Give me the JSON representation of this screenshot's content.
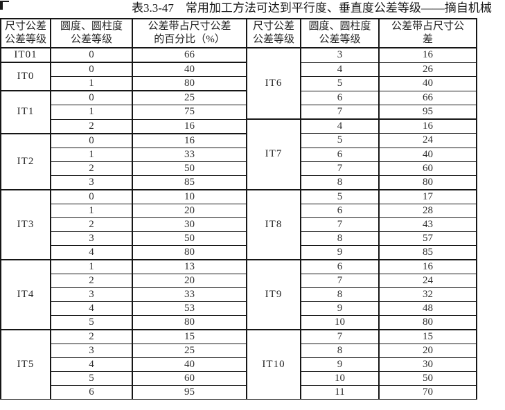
{
  "title": "表3.3-47　常用加工方法可达到平行度、垂直度公差等级——摘自机械",
  "table": {
    "headers": {
      "left": [
        {
          "line1": "尺寸公差",
          "line2": "公差等级"
        },
        {
          "line1": "圆度、圆柱度",
          "line2": "公差等级"
        },
        {
          "line1": "公差带占尺寸公差",
          "line2": "的百分比（%）"
        }
      ],
      "right": [
        {
          "line1": "尺寸公差",
          "line2": "公差等级"
        },
        {
          "line1": "圆度、圆柱度",
          "line2": "公差等级"
        },
        {
          "line1": "公差带占尺寸公",
          "line2": "差"
        }
      ]
    },
    "left_groups": [
      {
        "grade": "IT01",
        "rows": [
          [
            "0",
            "66"
          ]
        ]
      },
      {
        "grade": "IT0",
        "rows": [
          [
            "0",
            "40"
          ],
          [
            "1",
            "80"
          ]
        ]
      },
      {
        "grade": "IT1",
        "rows": [
          [
            "0",
            "25"
          ],
          [
            "1",
            "75"
          ],
          [
            "2",
            "16"
          ]
        ]
      },
      {
        "grade": "IT2",
        "rows": [
          [
            "0",
            "16"
          ],
          [
            "1",
            "33"
          ],
          [
            "2",
            "50"
          ],
          [
            "3",
            "85"
          ]
        ]
      },
      {
        "grade": "IT3",
        "rows": [
          [
            "0",
            "10"
          ],
          [
            "1",
            "20"
          ],
          [
            "2",
            "30"
          ],
          [
            "3",
            "50"
          ],
          [
            "4",
            "80"
          ]
        ]
      },
      {
        "grade": "IT4",
        "rows": [
          [
            "1",
            "13"
          ],
          [
            "2",
            "20"
          ],
          [
            "3",
            "33"
          ],
          [
            "4",
            "53"
          ],
          [
            "5",
            "80"
          ]
        ]
      },
      {
        "grade": "IT5",
        "rows": [
          [
            "2",
            "15"
          ],
          [
            "3",
            "25"
          ],
          [
            "4",
            "40"
          ],
          [
            "5",
            "60"
          ],
          [
            "6",
            "95"
          ]
        ]
      }
    ],
    "right_groups": [
      {
        "grade": "IT6",
        "rows": [
          [
            "3",
            "16"
          ],
          [
            "4",
            "26"
          ],
          [
            "5",
            "40"
          ],
          [
            "6",
            "66"
          ],
          [
            "7",
            "95"
          ]
        ]
      },
      {
        "grade": "IT7",
        "rows": [
          [
            "4",
            "16"
          ],
          [
            "5",
            "24"
          ],
          [
            "6",
            "40"
          ],
          [
            "7",
            "60"
          ],
          [
            "8",
            "80"
          ]
        ]
      },
      {
        "grade": "IT8",
        "rows": [
          [
            "5",
            "17"
          ],
          [
            "6",
            "28"
          ],
          [
            "7",
            "43"
          ],
          [
            "8",
            "57"
          ],
          [
            "9",
            "85"
          ]
        ]
      },
      {
        "grade": "IT9",
        "rows": [
          [
            "6",
            "16"
          ],
          [
            "7",
            "24"
          ],
          [
            "8",
            "32"
          ],
          [
            "9",
            "48"
          ],
          [
            "10",
            "80"
          ]
        ]
      },
      {
        "grade": "IT10",
        "rows": [
          [
            "7",
            "15"
          ],
          [
            "8",
            "20"
          ],
          [
            "9",
            "30"
          ],
          [
            "10",
            "50"
          ],
          [
            "11",
            "70"
          ]
        ]
      }
    ]
  }
}
